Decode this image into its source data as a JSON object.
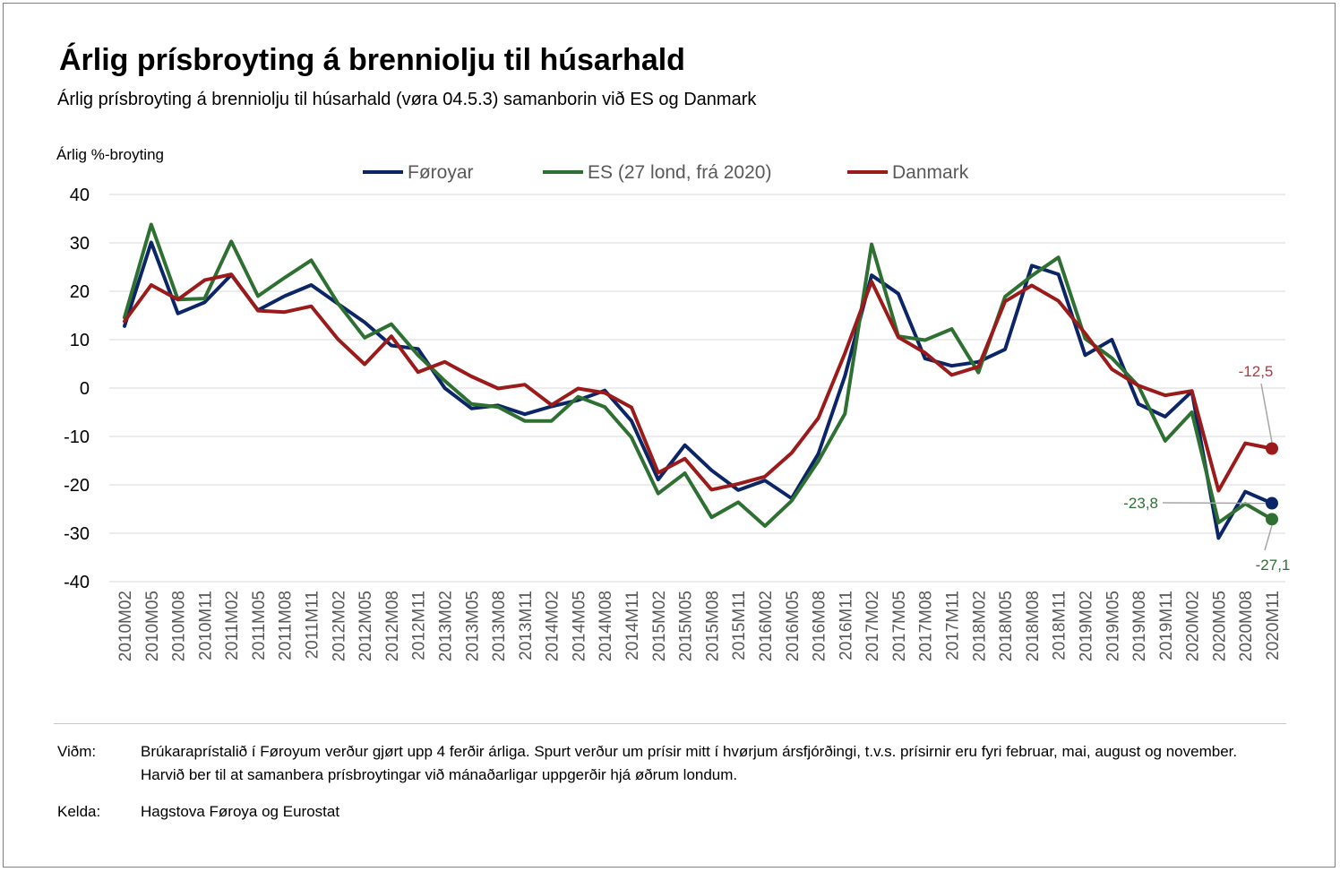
{
  "header": {
    "title": "Árlig prísbroyting á brenniolju til húsarhald",
    "subtitle": "Árlig prísbroyting á brenniolju til húsarhald (vøra 04.5.3) samanborin við ES og Danmark"
  },
  "chart_data": {
    "type": "line",
    "ylabel": "Árlig %-broyting",
    "ylim": [
      -40,
      40
    ],
    "yticks": [
      40,
      30,
      20,
      10,
      0,
      -10,
      -20,
      -30,
      -40
    ],
    "ytick_labels": [
      "40",
      "30",
      "20",
      "10",
      "0",
      "-10",
      "-20",
      "-30",
      "-40"
    ],
    "legend_position": "top",
    "grid": true,
    "categories": [
      "2010M02",
      "2010M05",
      "2010M08",
      "2010M11",
      "2011M02",
      "2011M05",
      "2011M08",
      "2011M11",
      "2012M02",
      "2012M05",
      "2012M08",
      "2012M11",
      "2013M02",
      "2013M05",
      "2013M08",
      "2013M11",
      "2014M02",
      "2014M05",
      "2014M08",
      "2014M11",
      "2015M02",
      "2015M05",
      "2015M08",
      "2015M11",
      "2016M02",
      "2016M05",
      "2016M08",
      "2016M11",
      "2017M02",
      "2017M05",
      "2017M08",
      "2017M11",
      "2018M02",
      "2018M05",
      "2018M08",
      "2018M11",
      "2019M02",
      "2019M05",
      "2019M08",
      "2019M11",
      "2020M02",
      "2020M05",
      "2020M08",
      "2020M11"
    ],
    "series": [
      {
        "name": "Føroyar",
        "color": "#0b2566",
        "values": [
          12.8,
          30.1,
          15.4,
          17.7,
          23.4,
          16.1,
          19.0,
          21.3,
          17.4,
          13.6,
          8.8,
          8.1,
          0.0,
          -4.2,
          -3.6,
          -5.4,
          -3.8,
          -2.5,
          -0.5,
          -6.8,
          -18.9,
          -11.8,
          -17.0,
          -21.1,
          -19.1,
          -22.8,
          -13.6,
          2.5,
          23.3,
          19.5,
          6.1,
          4.6,
          5.4,
          8.0,
          25.3,
          23.5,
          6.8,
          10.0,
          -3.3,
          -5.9,
          -0.7,
          -31.0,
          -21.4,
          -23.8
        ]
      },
      {
        "name": "ES (27 lond, frá 2020)",
        "color": "#2e7032",
        "values": [
          14.6,
          33.8,
          18.3,
          18.5,
          30.3,
          19.0,
          22.8,
          26.4,
          17.5,
          10.4,
          13.2,
          6.8,
          1.5,
          -3.3,
          -3.9,
          -6.8,
          -6.8,
          -1.8,
          -3.9,
          -10.2,
          -21.8,
          -17.6,
          -26.7,
          -23.6,
          -28.5,
          -23.3,
          -15.1,
          -5.3,
          29.7,
          10.7,
          9.9,
          12.2,
          3.2,
          18.9,
          23.2,
          27.0,
          10.2,
          6.2,
          0.4,
          -10.9,
          -5.0,
          -27.8,
          -23.9,
          -27.1
        ]
      },
      {
        "name": "Danmark",
        "color": "#9b1b1b",
        "values": [
          13.8,
          21.3,
          18.3,
          22.3,
          23.5,
          16.0,
          15.7,
          16.9,
          10.1,
          4.9,
          10.7,
          3.3,
          5.4,
          2.4,
          -0.1,
          0.7,
          -3.5,
          -0.1,
          -1.0,
          -4.0,
          -17.5,
          -14.6,
          -21.0,
          -19.8,
          -18.3,
          -13.4,
          -6.2,
          7.2,
          22.0,
          10.5,
          7.3,
          2.7,
          4.4,
          17.9,
          21.2,
          18.0,
          11.3,
          3.9,
          0.5,
          -1.5,
          -0.6,
          -21.2,
          -11.4,
          -12.5
        ]
      }
    ],
    "annotations": [
      {
        "series": "Danmark",
        "label": "-12,5",
        "value": -12.5,
        "color": "#c0313c"
      },
      {
        "series": "Føroyar",
        "label": "-23,8",
        "value": -23.8,
        "color": "#2e7032"
      },
      {
        "series": "ES (27 lond, frá 2020)",
        "label": "-27,1",
        "value": -27.1,
        "color": "#2e7032"
      }
    ]
  },
  "footer": {
    "note_label": "Viðm:",
    "note_text": "Brúkaraprístalið í Føroyum verður gjørt upp 4 ferðir árliga. Spurt verður um prísir mitt í hvørjum ársfjórðingi, t.v.s. prísirnir eru fyri februar, mai, august og november. Harvið ber til at samanbera prísbroytingar við mánaðarligar uppgerðir hjá øðrum londum.",
    "source_label": "Kelda:",
    "source_text": "Hagstova Føroya og Eurostat"
  }
}
